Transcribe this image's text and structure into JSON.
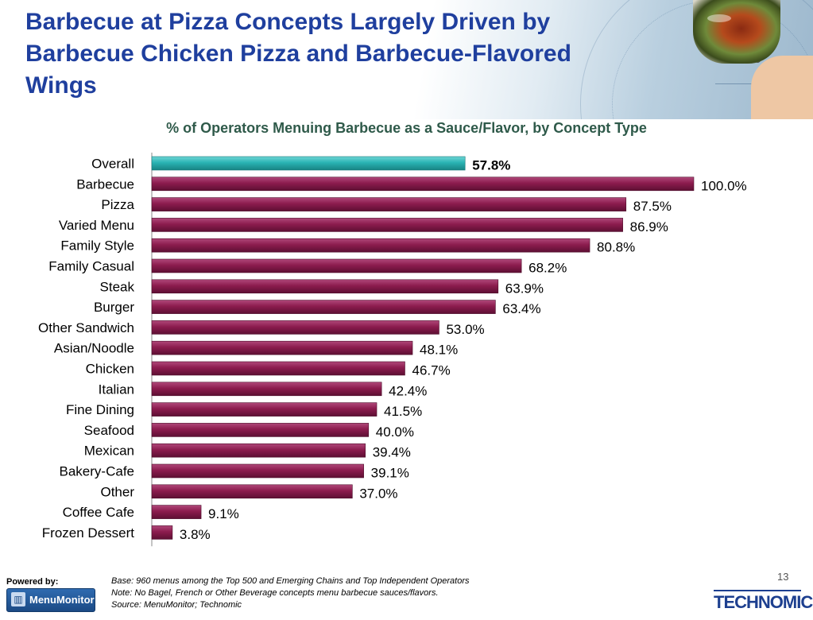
{
  "slide": {
    "title": "Barbecue at Pizza Concepts Largely Driven by Barbecue Chicken Pizza and Barbecue-Flavored Wings",
    "page_number": "13"
  },
  "footer": {
    "powered_by": "Powered by:",
    "menumonitor_logo": "MenuMonitor",
    "base_note": "Base: 960 menus among the Top 500 and Emerging Chains and Top Independent Operators",
    "note": "Note: No Bagel, French or Other Beverage concepts menu barbecue sauces/flavors.",
    "source": "Source: MenuMonitor; Technomic",
    "technomic_logo": "TECHNOMIC"
  },
  "colors": {
    "highlight_bar": "#29b3b3",
    "bar": "#8c1c4e",
    "title": "#1f3f9e",
    "subtitle": "#2f5a4a"
  },
  "chart_data": {
    "type": "bar",
    "orientation": "horizontal",
    "title": "% of Operators Menuing Barbecue as a Sauce/Flavor, by Concept Type",
    "categories": [
      "Overall",
      "Barbecue",
      "Pizza",
      "Varied Menu",
      "Family Style",
      "Family Casual",
      "Steak",
      "Burger",
      "Other Sandwich",
      "Asian/Noodle",
      "Chicken",
      "Italian",
      "Fine Dining",
      "Seafood",
      "Mexican",
      "Bakery-Cafe",
      "Other",
      "Coffee Cafe",
      "Frozen Dessert"
    ],
    "values": [
      57.8,
      100.0,
      87.5,
      86.9,
      80.8,
      68.2,
      63.9,
      63.4,
      53.0,
      48.1,
      46.7,
      42.4,
      41.5,
      40.0,
      39.4,
      39.1,
      37.0,
      9.1,
      3.8
    ],
    "labels": [
      "57.8%",
      "100.0%",
      "87.5%",
      "86.9%",
      "80.8%",
      "68.2%",
      "63.9%",
      "63.4%",
      "53.0%",
      "48.1%",
      "46.7%",
      "42.4%",
      "41.5%",
      "40.0%",
      "39.4%",
      "39.1%",
      "37.0%",
      "9.1%",
      "3.8%"
    ],
    "highlight_category": "Overall",
    "xlim": [
      0,
      100
    ],
    "grid": false,
    "legend": "none"
  }
}
